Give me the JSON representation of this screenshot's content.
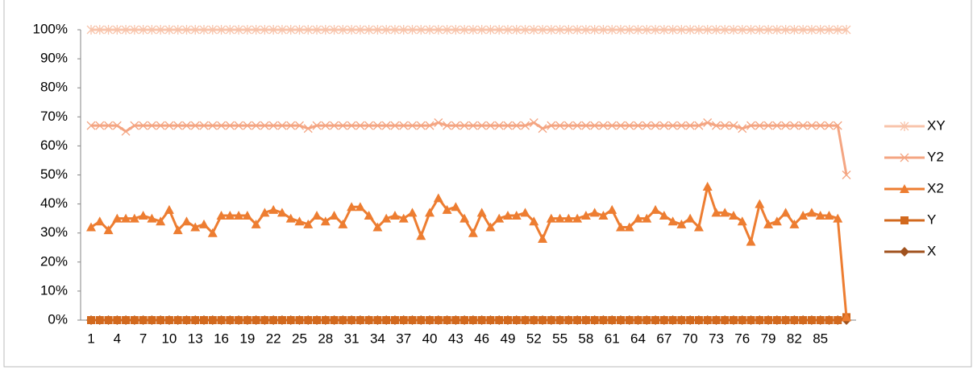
{
  "chart_data": {
    "type": "line",
    "categories": [
      "1",
      null,
      null,
      "4",
      null,
      null,
      "7",
      null,
      null,
      "10",
      null,
      null,
      "13",
      null,
      null,
      "16",
      null,
      null,
      "19",
      null,
      null,
      "22",
      null,
      null,
      "25",
      null,
      null,
      "28",
      null,
      null,
      "31",
      null,
      null,
      "34",
      null,
      null,
      "37",
      null,
      null,
      "40",
      null,
      null,
      "43",
      null,
      null,
      "46",
      null,
      null,
      "49",
      null,
      null,
      "52",
      null,
      null,
      "55",
      null,
      null,
      "58",
      null,
      null,
      "61",
      null,
      null,
      "64",
      null,
      null,
      "67",
      null,
      null,
      "70",
      null,
      null,
      "73",
      null,
      null,
      "76",
      null,
      null,
      "79",
      null,
      null,
      "82",
      null,
      null,
      "85",
      null,
      null,
      null
    ],
    "series": [
      {
        "name": "XY",
        "color": "#f8c4ab",
        "marker": "star",
        "values": [
          100,
          100,
          100,
          100,
          100,
          100,
          100,
          100,
          100,
          100,
          100,
          100,
          100,
          100,
          100,
          100,
          100,
          100,
          100,
          100,
          100,
          100,
          100,
          100,
          100,
          100,
          100,
          100,
          100,
          100,
          100,
          100,
          100,
          100,
          100,
          100,
          100,
          100,
          100,
          100,
          100,
          100,
          100,
          100,
          100,
          100,
          100,
          100,
          100,
          100,
          100,
          100,
          100,
          100,
          100,
          100,
          100,
          100,
          100,
          100,
          100,
          100,
          100,
          100,
          100,
          100,
          100,
          100,
          100,
          100,
          100,
          100,
          100,
          100,
          100,
          100,
          100,
          100,
          100,
          100,
          100,
          100,
          100,
          100,
          100,
          100,
          100,
          100
        ]
      },
      {
        "name": "Y2",
        "color": "#f4a582",
        "marker": "x",
        "values": [
          67,
          67,
          67,
          67,
          65,
          67,
          67,
          67,
          67,
          67,
          67,
          67,
          67,
          67,
          67,
          67,
          67,
          67,
          67,
          67,
          67,
          67,
          67,
          67,
          67,
          66,
          67,
          67,
          67,
          67,
          67,
          67,
          67,
          67,
          67,
          67,
          67,
          67,
          67,
          67,
          68,
          67,
          67,
          67,
          67,
          67,
          67,
          67,
          67,
          67,
          67,
          68,
          66,
          67,
          67,
          67,
          67,
          67,
          67,
          67,
          67,
          67,
          67,
          67,
          67,
          67,
          67,
          67,
          67,
          67,
          67,
          68,
          67,
          67,
          67,
          66,
          67,
          67,
          67,
          67,
          67,
          67,
          67,
          67,
          67,
          67,
          67,
          50
        ]
      },
      {
        "name": "X2",
        "color": "#ed7d31",
        "marker": "triangle",
        "values": [
          32,
          34,
          31,
          35,
          35,
          35,
          36,
          35,
          34,
          38,
          31,
          34,
          32,
          33,
          30,
          36,
          36,
          36,
          36,
          33,
          37,
          38,
          37,
          35,
          34,
          33,
          36,
          34,
          36,
          33,
          39,
          39,
          36,
          32,
          35,
          36,
          35,
          37,
          29,
          37,
          42,
          38,
          39,
          35,
          30,
          37,
          32,
          35,
          36,
          36,
          37,
          34,
          28,
          35,
          35,
          35,
          35,
          36,
          37,
          36,
          38,
          32,
          32,
          35,
          35,
          38,
          36,
          34,
          33,
          35,
          32,
          46,
          37,
          37,
          36,
          34,
          27,
          40,
          33,
          34,
          37,
          33,
          36,
          37,
          36,
          36,
          35,
          1
        ]
      },
      {
        "name": "Y",
        "color": "#d2691e",
        "marker": "square",
        "values": [
          0,
          0,
          0,
          0,
          0,
          0,
          0,
          0,
          0,
          0,
          0,
          0,
          0,
          0,
          0,
          0,
          0,
          0,
          0,
          0,
          0,
          0,
          0,
          0,
          0,
          0,
          0,
          0,
          0,
          0,
          0,
          0,
          0,
          0,
          0,
          0,
          0,
          0,
          0,
          0,
          0,
          0,
          0,
          0,
          0,
          0,
          0,
          0,
          0,
          0,
          0,
          0,
          0,
          0,
          0,
          0,
          0,
          0,
          0,
          0,
          0,
          0,
          0,
          0,
          0,
          0,
          0,
          0,
          0,
          0,
          0,
          0,
          0,
          0,
          0,
          0,
          0,
          0,
          0,
          0,
          0,
          0,
          0,
          0,
          0,
          0,
          0,
          1
        ]
      },
      {
        "name": "X",
        "color": "#a0521e",
        "marker": "diamond",
        "values": [
          0,
          0,
          0,
          0,
          0,
          0,
          0,
          0,
          0,
          0,
          0,
          0,
          0,
          0,
          0,
          0,
          0,
          0,
          0,
          0,
          0,
          0,
          0,
          0,
          0,
          0,
          0,
          0,
          0,
          0,
          0,
          0,
          0,
          0,
          0,
          0,
          0,
          0,
          0,
          0,
          0,
          0,
          0,
          0,
          0,
          0,
          0,
          0,
          0,
          0,
          0,
          0,
          0,
          0,
          0,
          0,
          0,
          0,
          0,
          0,
          0,
          0,
          0,
          0,
          0,
          0,
          0,
          0,
          0,
          0,
          0,
          0,
          0,
          0,
          0,
          0,
          0,
          0,
          0,
          0,
          0,
          0,
          0,
          0,
          0,
          0,
          0,
          0
        ]
      }
    ],
    "ylim": [
      0,
      100
    ],
    "yticks": [
      {
        "value": 0,
        "label": "0%"
      },
      {
        "value": 10,
        "label": "10%"
      },
      {
        "value": 20,
        "label": "20%"
      },
      {
        "value": 30,
        "label": "30%"
      },
      {
        "value": 40,
        "label": "40%"
      },
      {
        "value": 50,
        "label": "50%"
      },
      {
        "value": 60,
        "label": "60%"
      },
      {
        "value": 70,
        "label": "70%"
      },
      {
        "value": 80,
        "label": "80%"
      },
      {
        "value": 90,
        "label": "90%"
      },
      {
        "value": 100,
        "label": "100%"
      }
    ],
    "grid": false,
    "legend": "right"
  }
}
